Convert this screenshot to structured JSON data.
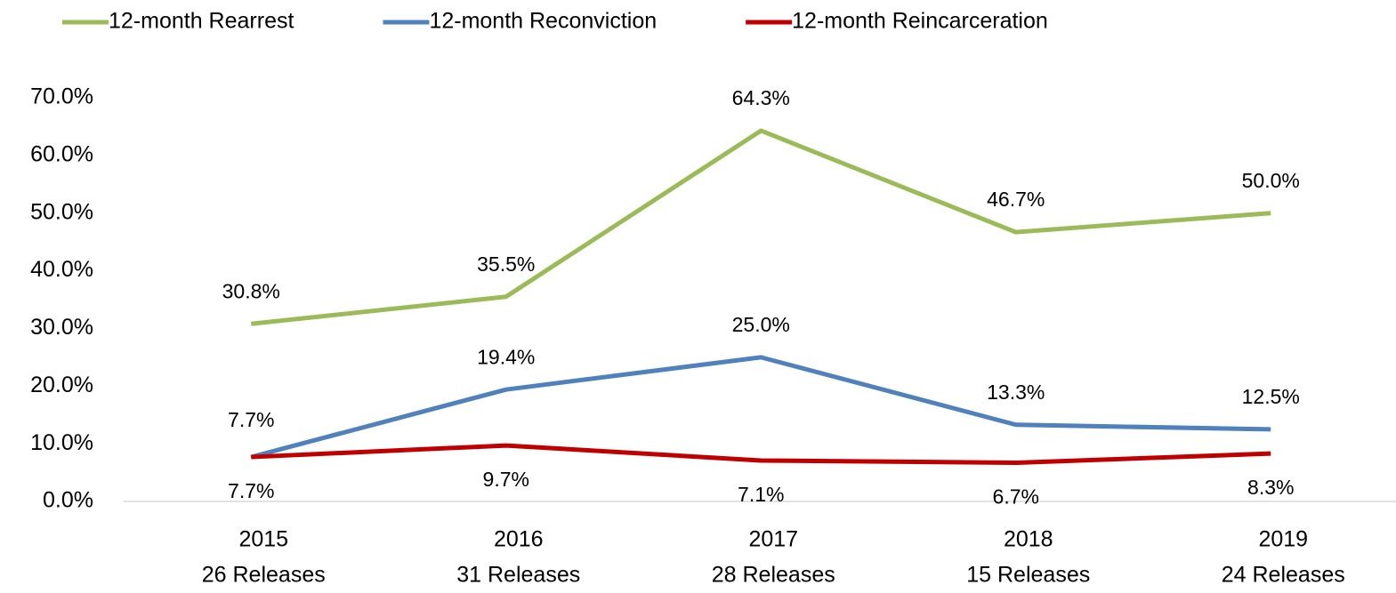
{
  "chart_data": {
    "type": "line",
    "categories": [
      [
        "2015",
        "26 Releases"
      ],
      [
        "2016",
        "31 Releases"
      ],
      [
        "2017",
        "28 Releases"
      ],
      [
        "2018",
        "15 Releases"
      ],
      [
        "2019",
        "24 Releases"
      ]
    ],
    "series": [
      {
        "name": "12-month Rearrest",
        "color": "#9bbb59",
        "values": [
          30.8,
          35.5,
          64.3,
          46.7,
          50.0
        ],
        "value_labels": [
          "30.8%",
          "35.5%",
          "64.3%",
          "46.7%",
          "50.0%"
        ]
      },
      {
        "name": "12-month Reconviction",
        "color": "#4f81bd",
        "values": [
          7.7,
          19.4,
          25.0,
          13.3,
          12.5
        ],
        "value_labels": [
          "7.7%",
          "19.4%",
          "25.0%",
          "13.3%",
          "12.5%"
        ]
      },
      {
        "name": "12-month Reincarceration",
        "color": "#c00000",
        "values": [
          7.7,
          9.7,
          7.1,
          6.7,
          8.3
        ],
        "value_labels": [
          "7.7%",
          "9.7%",
          "7.1%",
          "6.7%",
          "8.3%"
        ]
      }
    ],
    "ylim": [
      0,
      70
    ],
    "yticks": [
      {
        "value": 0,
        "label": "0.0%"
      },
      {
        "value": 10,
        "label": "10.0%"
      },
      {
        "value": 20,
        "label": "20.0%"
      },
      {
        "value": 30,
        "label": "30.0%"
      },
      {
        "value": 40,
        "label": "40.0%"
      },
      {
        "value": 50,
        "label": "50.0%"
      },
      {
        "value": 60,
        "label": "60.0%"
      },
      {
        "value": 70,
        "label": "70.0%"
      }
    ],
    "legend": "top",
    "grid": false
  }
}
